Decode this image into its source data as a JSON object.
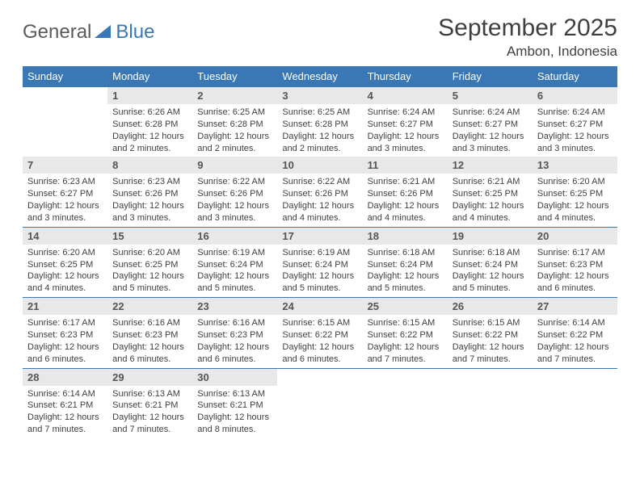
{
  "brand": {
    "part1": "General",
    "part2": "Blue"
  },
  "colors": {
    "accent": "#3a78b5",
    "gray_band": "#e8e8e8",
    "text": "#404040"
  },
  "title": "September 2025",
  "location": "Ambon, Indonesia",
  "weekdays": [
    "Sunday",
    "Monday",
    "Tuesday",
    "Wednesday",
    "Thursday",
    "Friday",
    "Saturday"
  ],
  "first_weekday_offset": 1,
  "days": [
    {
      "n": 1,
      "sr": "6:26 AM",
      "ss": "6:28 PM",
      "dl": "12 hours and 2 minutes."
    },
    {
      "n": 2,
      "sr": "6:25 AM",
      "ss": "6:28 PM",
      "dl": "12 hours and 2 minutes."
    },
    {
      "n": 3,
      "sr": "6:25 AM",
      "ss": "6:28 PM",
      "dl": "12 hours and 2 minutes."
    },
    {
      "n": 4,
      "sr": "6:24 AM",
      "ss": "6:27 PM",
      "dl": "12 hours and 3 minutes."
    },
    {
      "n": 5,
      "sr": "6:24 AM",
      "ss": "6:27 PM",
      "dl": "12 hours and 3 minutes."
    },
    {
      "n": 6,
      "sr": "6:24 AM",
      "ss": "6:27 PM",
      "dl": "12 hours and 3 minutes."
    },
    {
      "n": 7,
      "sr": "6:23 AM",
      "ss": "6:27 PM",
      "dl": "12 hours and 3 minutes."
    },
    {
      "n": 8,
      "sr": "6:23 AM",
      "ss": "6:26 PM",
      "dl": "12 hours and 3 minutes."
    },
    {
      "n": 9,
      "sr": "6:22 AM",
      "ss": "6:26 PM",
      "dl": "12 hours and 3 minutes."
    },
    {
      "n": 10,
      "sr": "6:22 AM",
      "ss": "6:26 PM",
      "dl": "12 hours and 4 minutes."
    },
    {
      "n": 11,
      "sr": "6:21 AM",
      "ss": "6:26 PM",
      "dl": "12 hours and 4 minutes."
    },
    {
      "n": 12,
      "sr": "6:21 AM",
      "ss": "6:25 PM",
      "dl": "12 hours and 4 minutes."
    },
    {
      "n": 13,
      "sr": "6:20 AM",
      "ss": "6:25 PM",
      "dl": "12 hours and 4 minutes."
    },
    {
      "n": 14,
      "sr": "6:20 AM",
      "ss": "6:25 PM",
      "dl": "12 hours and 4 minutes."
    },
    {
      "n": 15,
      "sr": "6:20 AM",
      "ss": "6:25 PM",
      "dl": "12 hours and 5 minutes."
    },
    {
      "n": 16,
      "sr": "6:19 AM",
      "ss": "6:24 PM",
      "dl": "12 hours and 5 minutes."
    },
    {
      "n": 17,
      "sr": "6:19 AM",
      "ss": "6:24 PM",
      "dl": "12 hours and 5 minutes."
    },
    {
      "n": 18,
      "sr": "6:18 AM",
      "ss": "6:24 PM",
      "dl": "12 hours and 5 minutes."
    },
    {
      "n": 19,
      "sr": "6:18 AM",
      "ss": "6:24 PM",
      "dl": "12 hours and 5 minutes."
    },
    {
      "n": 20,
      "sr": "6:17 AM",
      "ss": "6:23 PM",
      "dl": "12 hours and 6 minutes."
    },
    {
      "n": 21,
      "sr": "6:17 AM",
      "ss": "6:23 PM",
      "dl": "12 hours and 6 minutes."
    },
    {
      "n": 22,
      "sr": "6:16 AM",
      "ss": "6:23 PM",
      "dl": "12 hours and 6 minutes."
    },
    {
      "n": 23,
      "sr": "6:16 AM",
      "ss": "6:23 PM",
      "dl": "12 hours and 6 minutes."
    },
    {
      "n": 24,
      "sr": "6:15 AM",
      "ss": "6:22 PM",
      "dl": "12 hours and 6 minutes."
    },
    {
      "n": 25,
      "sr": "6:15 AM",
      "ss": "6:22 PM",
      "dl": "12 hours and 7 minutes."
    },
    {
      "n": 26,
      "sr": "6:15 AM",
      "ss": "6:22 PM",
      "dl": "12 hours and 7 minutes."
    },
    {
      "n": 27,
      "sr": "6:14 AM",
      "ss": "6:22 PM",
      "dl": "12 hours and 7 minutes."
    },
    {
      "n": 28,
      "sr": "6:14 AM",
      "ss": "6:21 PM",
      "dl": "12 hours and 7 minutes."
    },
    {
      "n": 29,
      "sr": "6:13 AM",
      "ss": "6:21 PM",
      "dl": "12 hours and 7 minutes."
    },
    {
      "n": 30,
      "sr": "6:13 AM",
      "ss": "6:21 PM",
      "dl": "12 hours and 8 minutes."
    }
  ],
  "labels": {
    "sunrise": "Sunrise:",
    "sunset": "Sunset:",
    "daylight": "Daylight:"
  }
}
